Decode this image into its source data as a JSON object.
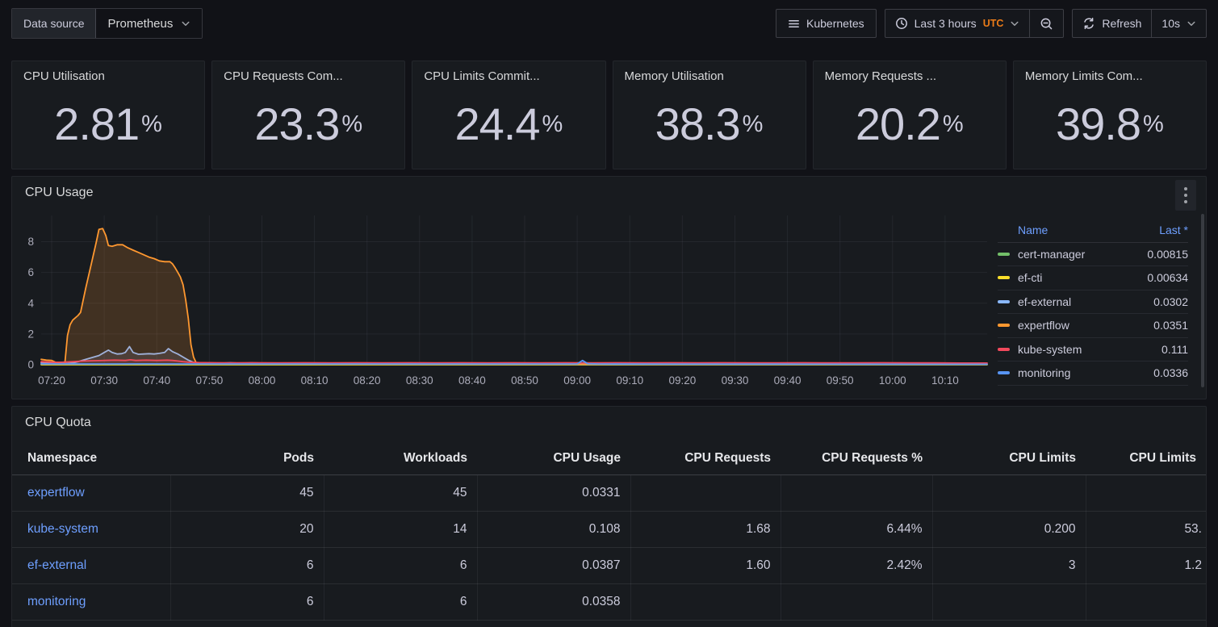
{
  "toolbar": {
    "datasource_label": "Data source",
    "datasource_value": "Prometheus",
    "dashboard_button": "Kubernetes",
    "time_range": "Last 3 hours",
    "timezone": "UTC",
    "refresh_label": "Refresh",
    "refresh_interval": "10s"
  },
  "colors": {
    "accent_link": "#6e9fff",
    "utc_orange": "#eb7b18",
    "panel_bg": "#181b1f",
    "page_bg": "#111217",
    "text": "#ccccdc"
  },
  "stats": [
    {
      "title": "CPU Utilisation",
      "value": "2.81",
      "unit": "%"
    },
    {
      "title": "CPU Requests Com...",
      "value": "23.3",
      "unit": "%"
    },
    {
      "title": "CPU Limits Commit...",
      "value": "24.4",
      "unit": "%"
    },
    {
      "title": "Memory Utilisation",
      "value": "38.3",
      "unit": "%"
    },
    {
      "title": "Memory Requests ...",
      "value": "20.2",
      "unit": "%"
    },
    {
      "title": "Memory Limits Com...",
      "value": "39.8",
      "unit": "%"
    }
  ],
  "cpu_usage_panel": {
    "title": "CPU Usage",
    "legend": {
      "name_header": "Name",
      "last_header": "Last *",
      "series": [
        {
          "name": "cert-manager",
          "last": "0.00815",
          "color": "#73BF69"
        },
        {
          "name": "ef-cti",
          "last": "0.00634",
          "color": "#FADE2A"
        },
        {
          "name": "ef-external",
          "last": "0.0302",
          "color": "#8AB8FF"
        },
        {
          "name": "expertflow",
          "last": "0.0351",
          "color": "#FF9830"
        },
        {
          "name": "kube-system",
          "last": "0.111",
          "color": "#F2495C"
        },
        {
          "name": "monitoring",
          "last": "0.0336",
          "color": "#5794F2"
        }
      ]
    }
  },
  "chart_data": {
    "type": "area",
    "title": "CPU Usage",
    "xlabel": "",
    "ylabel": "",
    "grid": true,
    "legend_position": "right",
    "x_domain_minutes": [
      0,
      180
    ],
    "x_start_time": "07:18",
    "x_ticks": [
      "07:20",
      "07:30",
      "07:40",
      "07:50",
      "08:00",
      "08:10",
      "08:20",
      "08:30",
      "08:40",
      "08:50",
      "09:00",
      "09:10",
      "09:20",
      "09:30",
      "09:40",
      "09:50",
      "10:00",
      "10:10"
    ],
    "x_tick_minutes": [
      2,
      12,
      22,
      32,
      42,
      52,
      62,
      72,
      82,
      92,
      102,
      112,
      122,
      132,
      142,
      152,
      162,
      172
    ],
    "y_ticks": [
      0,
      2,
      4,
      6,
      8
    ],
    "ylim": [
      0,
      9.6
    ],
    "series": [
      {
        "name": "cert-manager",
        "color": "#73BF69",
        "fill_opacity": 0.08,
        "points": [
          [
            0,
            0.012
          ],
          [
            30,
            0.01
          ],
          [
            60,
            0.009
          ],
          [
            90,
            0.009
          ],
          [
            120,
            0.008
          ],
          [
            150,
            0.008
          ],
          [
            180,
            0.008
          ]
        ]
      },
      {
        "name": "ef-cti",
        "color": "#FADE2A",
        "fill_opacity": 0.08,
        "points": [
          [
            0,
            0.008
          ],
          [
            30,
            0.007
          ],
          [
            60,
            0.007
          ],
          [
            90,
            0.006
          ],
          [
            120,
            0.006
          ],
          [
            150,
            0.006
          ],
          [
            180,
            0.006
          ]
        ]
      },
      {
        "name": "ef-external",
        "color": "#8AB8FF",
        "fill_opacity": 0.12,
        "points": [
          [
            0,
            0.12
          ],
          [
            2,
            0.1
          ],
          [
            4,
            0.08
          ],
          [
            5,
            0.08
          ],
          [
            6,
            0.12
          ],
          [
            7,
            0.2
          ],
          [
            8,
            0.3
          ],
          [
            9,
            0.4
          ],
          [
            10,
            0.5
          ],
          [
            11,
            0.6
          ],
          [
            12,
            0.8
          ],
          [
            12.8,
            0.95
          ],
          [
            13.5,
            0.8
          ],
          [
            14.5,
            0.7
          ],
          [
            15.3,
            0.72
          ],
          [
            16,
            0.8
          ],
          [
            16.8,
            1.18
          ],
          [
            17.5,
            0.8
          ],
          [
            18.5,
            0.68
          ],
          [
            19.5,
            0.7
          ],
          [
            20.5,
            0.72
          ],
          [
            21.5,
            0.7
          ],
          [
            22.5,
            0.74
          ],
          [
            23.5,
            0.8
          ],
          [
            24.2,
            1.05
          ],
          [
            25,
            0.85
          ],
          [
            26,
            0.7
          ],
          [
            27,
            0.5
          ],
          [
            28,
            0.3
          ],
          [
            29,
            0.15
          ],
          [
            30,
            0.1
          ],
          [
            32,
            0.12
          ],
          [
            34,
            0.1
          ],
          [
            36,
            0.13
          ],
          [
            38,
            0.1
          ],
          [
            40,
            0.12
          ],
          [
            43,
            0.1
          ],
          [
            46,
            0.08
          ],
          [
            50,
            0.06
          ],
          [
            55,
            0.05
          ],
          [
            60,
            0.05
          ],
          [
            70,
            0.04
          ],
          [
            80,
            0.04
          ],
          [
            90,
            0.04
          ],
          [
            100,
            0.04
          ],
          [
            110,
            0.035
          ],
          [
            120,
            0.035
          ],
          [
            140,
            0.03
          ],
          [
            160,
            0.03
          ],
          [
            180,
            0.03
          ]
        ]
      },
      {
        "name": "expertflow",
        "color": "#FF9830",
        "fill_opacity": 0.18,
        "points": [
          [
            0,
            0.35
          ],
          [
            1,
            0.3
          ],
          [
            2,
            0.28
          ],
          [
            3,
            0.12
          ],
          [
            4,
            0.06
          ],
          [
            4.5,
            0.05
          ],
          [
            5,
            1.9
          ],
          [
            5.5,
            2.6
          ],
          [
            6,
            2.9
          ],
          [
            7,
            3.2
          ],
          [
            7.5,
            3.4
          ],
          [
            8.5,
            5.0
          ],
          [
            9.5,
            6.5
          ],
          [
            10.5,
            8.0
          ],
          [
            11,
            8.8
          ],
          [
            11.7,
            8.85
          ],
          [
            12.3,
            8.4
          ],
          [
            12.8,
            7.75
          ],
          [
            13.5,
            7.7
          ],
          [
            14.5,
            7.8
          ],
          [
            15.5,
            7.8
          ],
          [
            16.5,
            7.6
          ],
          [
            17.5,
            7.45
          ],
          [
            18.5,
            7.3
          ],
          [
            19.5,
            7.15
          ],
          [
            20.5,
            7.0
          ],
          [
            21.5,
            6.9
          ],
          [
            22.5,
            6.75
          ],
          [
            23.5,
            6.7
          ],
          [
            24.5,
            6.7
          ],
          [
            25,
            6.55
          ],
          [
            25.5,
            6.3
          ],
          [
            26,
            6.0
          ],
          [
            26.5,
            5.7
          ],
          [
            27,
            5.2
          ],
          [
            27.5,
            4.2
          ],
          [
            28,
            3.0
          ],
          [
            28.5,
            1.3
          ],
          [
            29,
            0.5
          ],
          [
            29.5,
            0.12
          ],
          [
            30,
            0.06
          ],
          [
            35,
            0.05
          ],
          [
            45,
            0.05
          ],
          [
            60,
            0.04
          ],
          [
            80,
            0.04
          ],
          [
            100,
            0.04
          ],
          [
            120,
            0.035
          ],
          [
            140,
            0.035
          ],
          [
            160,
            0.035
          ],
          [
            180,
            0.035
          ]
        ]
      },
      {
        "name": "kube-system",
        "color": "#F2495C",
        "fill_opacity": 0.1,
        "points": [
          [
            0,
            0.2
          ],
          [
            2,
            0.17
          ],
          [
            4,
            0.16
          ],
          [
            6,
            0.2
          ],
          [
            8,
            0.24
          ],
          [
            10,
            0.26
          ],
          [
            12,
            0.28
          ],
          [
            14,
            0.3
          ],
          [
            16,
            0.28
          ],
          [
            17,
            0.32
          ],
          [
            18,
            0.28
          ],
          [
            20,
            0.3
          ],
          [
            22,
            0.28
          ],
          [
            24,
            0.3
          ],
          [
            25,
            0.28
          ],
          [
            26,
            0.24
          ],
          [
            27,
            0.2
          ],
          [
            28,
            0.17
          ],
          [
            30,
            0.14
          ],
          [
            33,
            0.13
          ],
          [
            36,
            0.12
          ],
          [
            40,
            0.13
          ],
          [
            45,
            0.12
          ],
          [
            50,
            0.13
          ],
          [
            55,
            0.12
          ],
          [
            60,
            0.13
          ],
          [
            65,
            0.12
          ],
          [
            70,
            0.13
          ],
          [
            75,
            0.12
          ],
          [
            80,
            0.13
          ],
          [
            85,
            0.12
          ],
          [
            90,
            0.13
          ],
          [
            95,
            0.12
          ],
          [
            100,
            0.13
          ],
          [
            105,
            0.12
          ],
          [
            110,
            0.13
          ],
          [
            115,
            0.12
          ],
          [
            120,
            0.13
          ],
          [
            125,
            0.12
          ],
          [
            130,
            0.13
          ],
          [
            135,
            0.12
          ],
          [
            140,
            0.12
          ],
          [
            145,
            0.13
          ],
          [
            150,
            0.12
          ],
          [
            155,
            0.12
          ],
          [
            160,
            0.13
          ],
          [
            165,
            0.12
          ],
          [
            170,
            0.12
          ],
          [
            175,
            0.11
          ],
          [
            180,
            0.11
          ]
        ]
      },
      {
        "name": "monitoring",
        "color": "#5794F2",
        "fill_opacity": 0.1,
        "points": [
          [
            0,
            0.06
          ],
          [
            10,
            0.05
          ],
          [
            20,
            0.06
          ],
          [
            30,
            0.05
          ],
          [
            40,
            0.05
          ],
          [
            50,
            0.05
          ],
          [
            60,
            0.05
          ],
          [
            70,
            0.05
          ],
          [
            80,
            0.05
          ],
          [
            90,
            0.05
          ],
          [
            100,
            0.05
          ],
          [
            102,
            0.06
          ],
          [
            103,
            0.28
          ],
          [
            104,
            0.07
          ],
          [
            106,
            0.05
          ],
          [
            120,
            0.04
          ],
          [
            140,
            0.04
          ],
          [
            160,
            0.035
          ],
          [
            180,
            0.034
          ]
        ]
      }
    ]
  },
  "cpu_quota_panel": {
    "title": "CPU Quota",
    "table": {
      "columns": [
        "Namespace",
        "Pods",
        "Workloads",
        "CPU Usage",
        "CPU Requests",
        "CPU Requests %",
        "CPU Limits",
        "CPU Limits"
      ],
      "rows": [
        {
          "namespace": "expertflow",
          "cells": [
            "45",
            "45",
            "0.0331",
            "",
            "",
            "",
            ""
          ]
        },
        {
          "namespace": "kube-system",
          "cells": [
            "20",
            "14",
            "0.108",
            "1.68",
            "6.44%",
            "0.200",
            "53."
          ]
        },
        {
          "namespace": "ef-external",
          "cells": [
            "6",
            "6",
            "0.0387",
            "1.60",
            "2.42%",
            "3",
            "1.2"
          ]
        },
        {
          "namespace": "monitoring",
          "cells": [
            "6",
            "6",
            "0.0358",
            "",
            "",
            "",
            ""
          ]
        }
      ]
    }
  }
}
